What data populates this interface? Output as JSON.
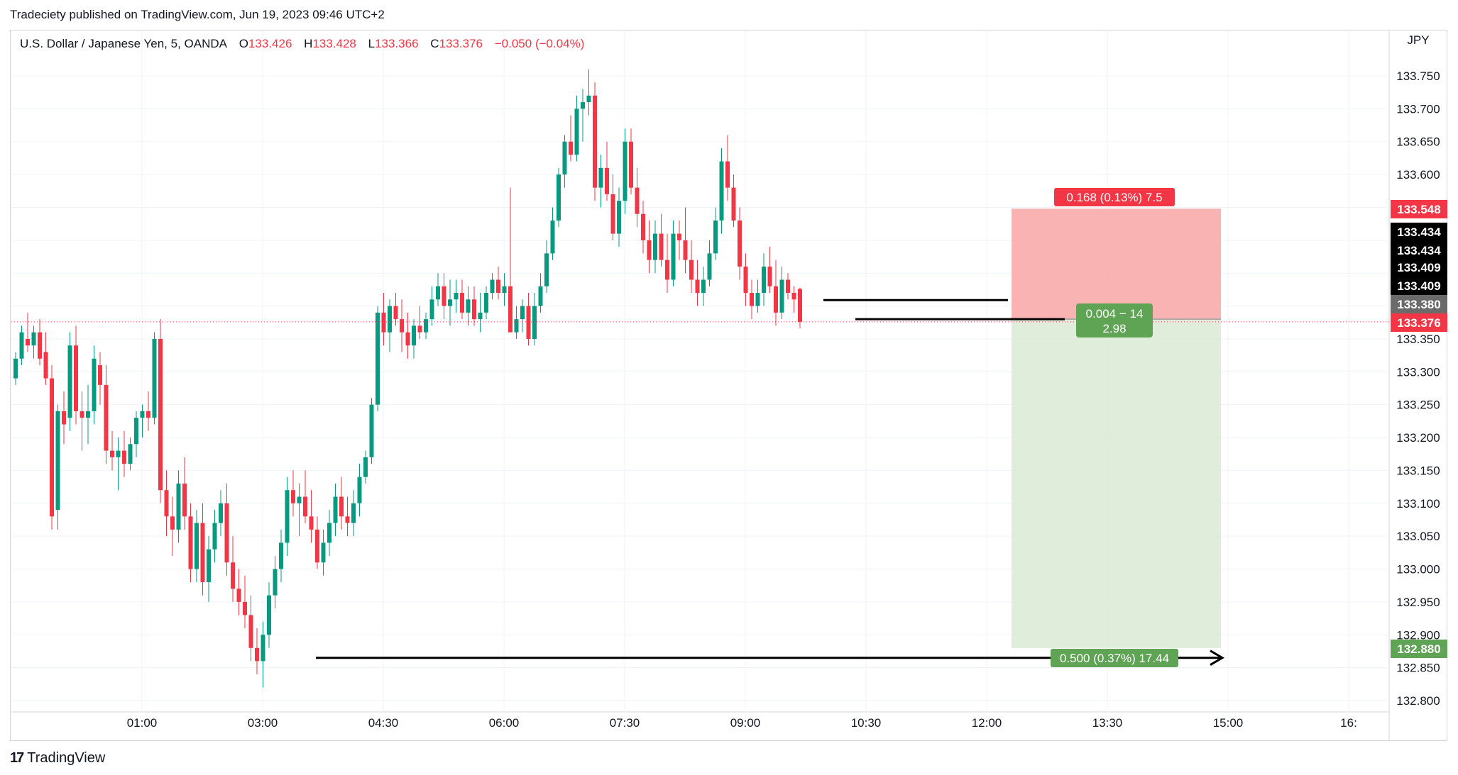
{
  "header": {
    "credit": "Tradeciety published on TradingView.com, Jun 19, 2023 09:46 UTC+2"
  },
  "legend": {
    "symbol": "U.S. Dollar / Japanese Yen, 5, OANDA",
    "o_label": "O",
    "o_value": "133.426",
    "h_label": "H",
    "h_value": "133.428",
    "l_label": "L",
    "l_value": "133.366",
    "c_label": "C",
    "c_value": "133.376",
    "change": "−0.050 (−0.04%)"
  },
  "brand": {
    "name": "TradingView"
  },
  "colors": {
    "up": "#089981",
    "down": "#f23645",
    "grid": "#f0f3fa",
    "risk_zone": "#f9a6a6",
    "target_zone": "#dcebd6",
    "risk_label": "#f23645",
    "target_label": "#5fa354",
    "axis_text": "#131722"
  },
  "chart_data": {
    "type": "candlestick",
    "instrument": "U.S. Dollar / Japanese Yen",
    "timeframe": "5",
    "broker": "OANDA",
    "currency_label": "JPY",
    "y_ticks": [
      "133.750",
      "133.700",
      "133.650",
      "133.600",
      "133.350",
      "133.300",
      "133.250",
      "133.200",
      "133.150",
      "133.100",
      "133.050",
      "133.000",
      "132.950",
      "132.900",
      "132.850",
      "132.800"
    ],
    "x_ticks": [
      "01:00",
      "03:00",
      "04:30",
      "06:00",
      "07:30",
      "09:00",
      "10:30",
      "12:00",
      "13:30",
      "15:00",
      "16:"
    ],
    "ylim": [
      132.78,
      133.77
    ],
    "price_badges": [
      {
        "value": "133.548",
        "style": "red"
      },
      {
        "value": "133.434",
        "style": "black"
      },
      {
        "value": "133.434",
        "style": "black"
      },
      {
        "value": "133.409",
        "style": "black"
      },
      {
        "value": "133.409",
        "style": "black"
      },
      {
        "value": "133.380",
        "style": "grey"
      },
      {
        "value": "133.376",
        "style": "red"
      },
      {
        "value": "132.880",
        "style": "green"
      }
    ],
    "position": {
      "side": "short",
      "entry": 133.38,
      "stop": 133.548,
      "target": 132.88,
      "risk_label": "0.168 (0.13%) 7.5",
      "mid_label_line1": "0.004 − 14",
      "mid_label_line2": "2.98",
      "target_label": "0.500 (0.37%) 17.44"
    },
    "annotations": [
      {
        "type": "horizontal_ray",
        "price": 132.865,
        "label": ""
      },
      {
        "type": "segment",
        "price": 133.409
      },
      {
        "type": "segment",
        "price": 133.38
      }
    ],
    "candles": [
      [
        133.29,
        133.33,
        133.28,
        133.32
      ],
      [
        133.32,
        133.37,
        133.31,
        133.36
      ],
      [
        133.35,
        133.39,
        133.33,
        133.34
      ],
      [
        133.34,
        133.37,
        133.32,
        133.36
      ],
      [
        133.36,
        133.38,
        133.31,
        133.32
      ],
      [
        133.33,
        133.36,
        133.28,
        133.29
      ],
      [
        133.29,
        133.31,
        133.06,
        133.08
      ],
      [
        133.09,
        133.25,
        133.06,
        133.24
      ],
      [
        133.24,
        133.27,
        133.19,
        133.22
      ],
      [
        133.23,
        133.36,
        133.21,
        133.34
      ],
      [
        133.34,
        133.37,
        133.22,
        133.24
      ],
      [
        133.24,
        133.27,
        133.18,
        133.23
      ],
      [
        133.23,
        133.28,
        133.19,
        133.24
      ],
      [
        133.24,
        133.34,
        133.22,
        133.32
      ],
      [
        133.31,
        133.33,
        133.25,
        133.28
      ],
      [
        133.28,
        133.31,
        133.16,
        133.18
      ],
      [
        133.18,
        133.21,
        133.15,
        133.17
      ],
      [
        133.17,
        133.2,
        133.12,
        133.18
      ],
      [
        133.18,
        133.21,
        133.14,
        133.16
      ],
      [
        133.16,
        133.2,
        133.15,
        133.19
      ],
      [
        133.19,
        133.24,
        133.17,
        133.23
      ],
      [
        133.23,
        133.25,
        133.2,
        133.24
      ],
      [
        133.24,
        133.27,
        133.21,
        133.23
      ],
      [
        133.23,
        133.36,
        133.22,
        133.35
      ],
      [
        133.35,
        133.38,
        133.1,
        133.12
      ],
      [
        133.12,
        133.15,
        133.05,
        133.08
      ],
      [
        133.08,
        133.11,
        133.02,
        133.06
      ],
      [
        133.06,
        133.15,
        133.04,
        133.13
      ],
      [
        133.13,
        133.17,
        133.06,
        133.08
      ],
      [
        133.08,
        133.1,
        132.98,
        133.0
      ],
      [
        133.0,
        133.09,
        132.98,
        133.07
      ],
      [
        133.07,
        133.1,
        132.96,
        132.98
      ],
      [
        132.98,
        133.05,
        132.95,
        133.03
      ],
      [
        133.03,
        133.09,
        133.01,
        133.07
      ],
      [
        133.07,
        133.12,
        133.05,
        133.1
      ],
      [
        133.1,
        133.13,
        132.99,
        133.01
      ],
      [
        133.01,
        133.05,
        132.95,
        132.97
      ],
      [
        132.97,
        133.0,
        132.93,
        132.95
      ],
      [
        132.95,
        132.99,
        132.91,
        132.93
      ],
      [
        132.93,
        132.96,
        132.86,
        132.88
      ],
      [
        132.88,
        132.91,
        132.84,
        132.86
      ],
      [
        132.86,
        132.92,
        132.82,
        132.9
      ],
      [
        132.9,
        132.98,
        132.88,
        132.96
      ],
      [
        132.96,
        133.02,
        132.94,
        133.0
      ],
      [
        133.0,
        133.06,
        132.98,
        133.04
      ],
      [
        133.04,
        133.14,
        133.02,
        133.12
      ],
      [
        133.12,
        133.15,
        133.08,
        133.1
      ],
      [
        133.1,
        133.13,
        133.05,
        133.11
      ],
      [
        133.11,
        133.15,
        133.07,
        133.08
      ],
      [
        133.08,
        133.12,
        133.04,
        133.06
      ],
      [
        133.06,
        133.08,
        133.0,
        133.01
      ],
      [
        133.01,
        133.06,
        132.99,
        133.04
      ],
      [
        133.04,
        133.09,
        133.02,
        133.07
      ],
      [
        133.07,
        133.13,
        133.05,
        133.11
      ],
      [
        133.11,
        133.14,
        133.06,
        133.08
      ],
      [
        133.08,
        133.11,
        133.05,
        133.07
      ],
      [
        133.07,
        133.12,
        133.05,
        133.1
      ],
      [
        133.1,
        133.16,
        133.08,
        133.14
      ],
      [
        133.14,
        133.18,
        133.13,
        133.17
      ],
      [
        133.17,
        133.26,
        133.16,
        133.25
      ],
      [
        133.25,
        133.4,
        133.24,
        133.39
      ],
      [
        133.39,
        133.42,
        133.34,
        133.36
      ],
      [
        133.36,
        133.41,
        133.33,
        133.4
      ],
      [
        133.4,
        133.42,
        133.37,
        133.38
      ],
      [
        133.38,
        133.41,
        133.33,
        133.36
      ],
      [
        133.36,
        133.39,
        133.32,
        133.34
      ],
      [
        133.34,
        133.38,
        133.32,
        133.37
      ],
      [
        133.37,
        133.4,
        133.35,
        133.36
      ],
      [
        133.36,
        133.39,
        133.35,
        133.38
      ],
      [
        133.38,
        133.43,
        133.37,
        133.41
      ],
      [
        133.41,
        133.45,
        133.4,
        133.43
      ],
      [
        133.43,
        133.45,
        133.38,
        133.4
      ],
      [
        133.4,
        133.44,
        133.37,
        133.41
      ],
      [
        133.41,
        133.44,
        133.39,
        133.42
      ],
      [
        133.42,
        133.44,
        133.38,
        133.39
      ],
      [
        133.39,
        133.43,
        133.37,
        133.41
      ],
      [
        133.41,
        133.43,
        133.37,
        133.38
      ],
      [
        133.38,
        133.42,
        133.36,
        133.39
      ],
      [
        133.39,
        133.43,
        133.38,
        133.42
      ],
      [
        133.42,
        133.45,
        133.41,
        133.44
      ],
      [
        133.44,
        133.46,
        133.41,
        133.42
      ],
      [
        133.42,
        133.45,
        133.4,
        133.43
      ],
      [
        133.43,
        133.58,
        133.36,
        133.36
      ],
      [
        133.36,
        133.4,
        133.35,
        133.38
      ],
      [
        133.38,
        133.41,
        133.36,
        133.4
      ],
      [
        133.4,
        133.42,
        133.34,
        133.35
      ],
      [
        133.35,
        133.42,
        133.34,
        133.4
      ],
      [
        133.4,
        133.45,
        133.39,
        133.43
      ],
      [
        133.43,
        133.5,
        133.42,
        133.48
      ],
      [
        133.48,
        133.55,
        133.47,
        133.53
      ],
      [
        133.53,
        133.61,
        133.52,
        133.6
      ],
      [
        133.6,
        133.66,
        133.58,
        133.65
      ],
      [
        133.65,
        133.69,
        133.62,
        133.63
      ],
      [
        133.63,
        133.72,
        133.62,
        133.7
      ],
      [
        133.7,
        133.73,
        133.65,
        133.71
      ],
      [
        133.71,
        133.76,
        133.69,
        133.72
      ],
      [
        133.72,
        133.74,
        133.56,
        133.58
      ],
      [
        133.58,
        133.63,
        133.55,
        133.61
      ],
      [
        133.61,
        133.65,
        133.56,
        133.57
      ],
      [
        133.57,
        133.6,
        133.5,
        133.51
      ],
      [
        133.51,
        133.58,
        133.49,
        133.56
      ],
      [
        133.56,
        133.67,
        133.54,
        133.65
      ],
      [
        133.65,
        133.67,
        133.57,
        133.58
      ],
      [
        133.58,
        133.61,
        133.52,
        133.54
      ],
      [
        133.54,
        133.56,
        133.48,
        133.5
      ],
      [
        133.5,
        133.53,
        133.45,
        133.47
      ],
      [
        133.47,
        133.53,
        133.45,
        133.51
      ],
      [
        133.51,
        133.54,
        133.46,
        133.47
      ],
      [
        133.47,
        133.51,
        133.42,
        133.44
      ],
      [
        133.44,
        133.53,
        133.43,
        133.51
      ],
      [
        133.51,
        133.53,
        133.47,
        133.5
      ],
      [
        133.5,
        133.55,
        133.45,
        133.47
      ],
      [
        133.47,
        133.5,
        133.42,
        133.44
      ],
      [
        133.44,
        133.47,
        133.4,
        133.42
      ],
      [
        133.42,
        133.46,
        133.4,
        133.44
      ],
      [
        133.44,
        133.5,
        133.43,
        133.48
      ],
      [
        133.48,
        133.55,
        133.47,
        133.53
      ],
      [
        133.53,
        133.64,
        133.51,
        133.62
      ],
      [
        133.62,
        133.66,
        133.56,
        133.58
      ],
      [
        133.58,
        133.6,
        133.52,
        133.53
      ],
      [
        133.53,
        133.55,
        133.44,
        133.46
      ],
      [
        133.46,
        133.48,
        133.4,
        133.42
      ],
      [
        133.42,
        133.44,
        133.38,
        133.4
      ],
      [
        133.4,
        133.44,
        133.39,
        133.42
      ],
      [
        133.42,
        133.48,
        133.4,
        133.46
      ],
      [
        133.46,
        133.49,
        133.42,
        133.43
      ],
      [
        133.43,
        133.47,
        133.37,
        133.39
      ],
      [
        133.39,
        133.46,
        133.38,
        133.44
      ],
      [
        133.44,
        133.45,
        133.41,
        133.42
      ],
      [
        133.42,
        133.43,
        133.39,
        133.41
      ],
      [
        133.426,
        133.428,
        133.366,
        133.376
      ]
    ]
  }
}
